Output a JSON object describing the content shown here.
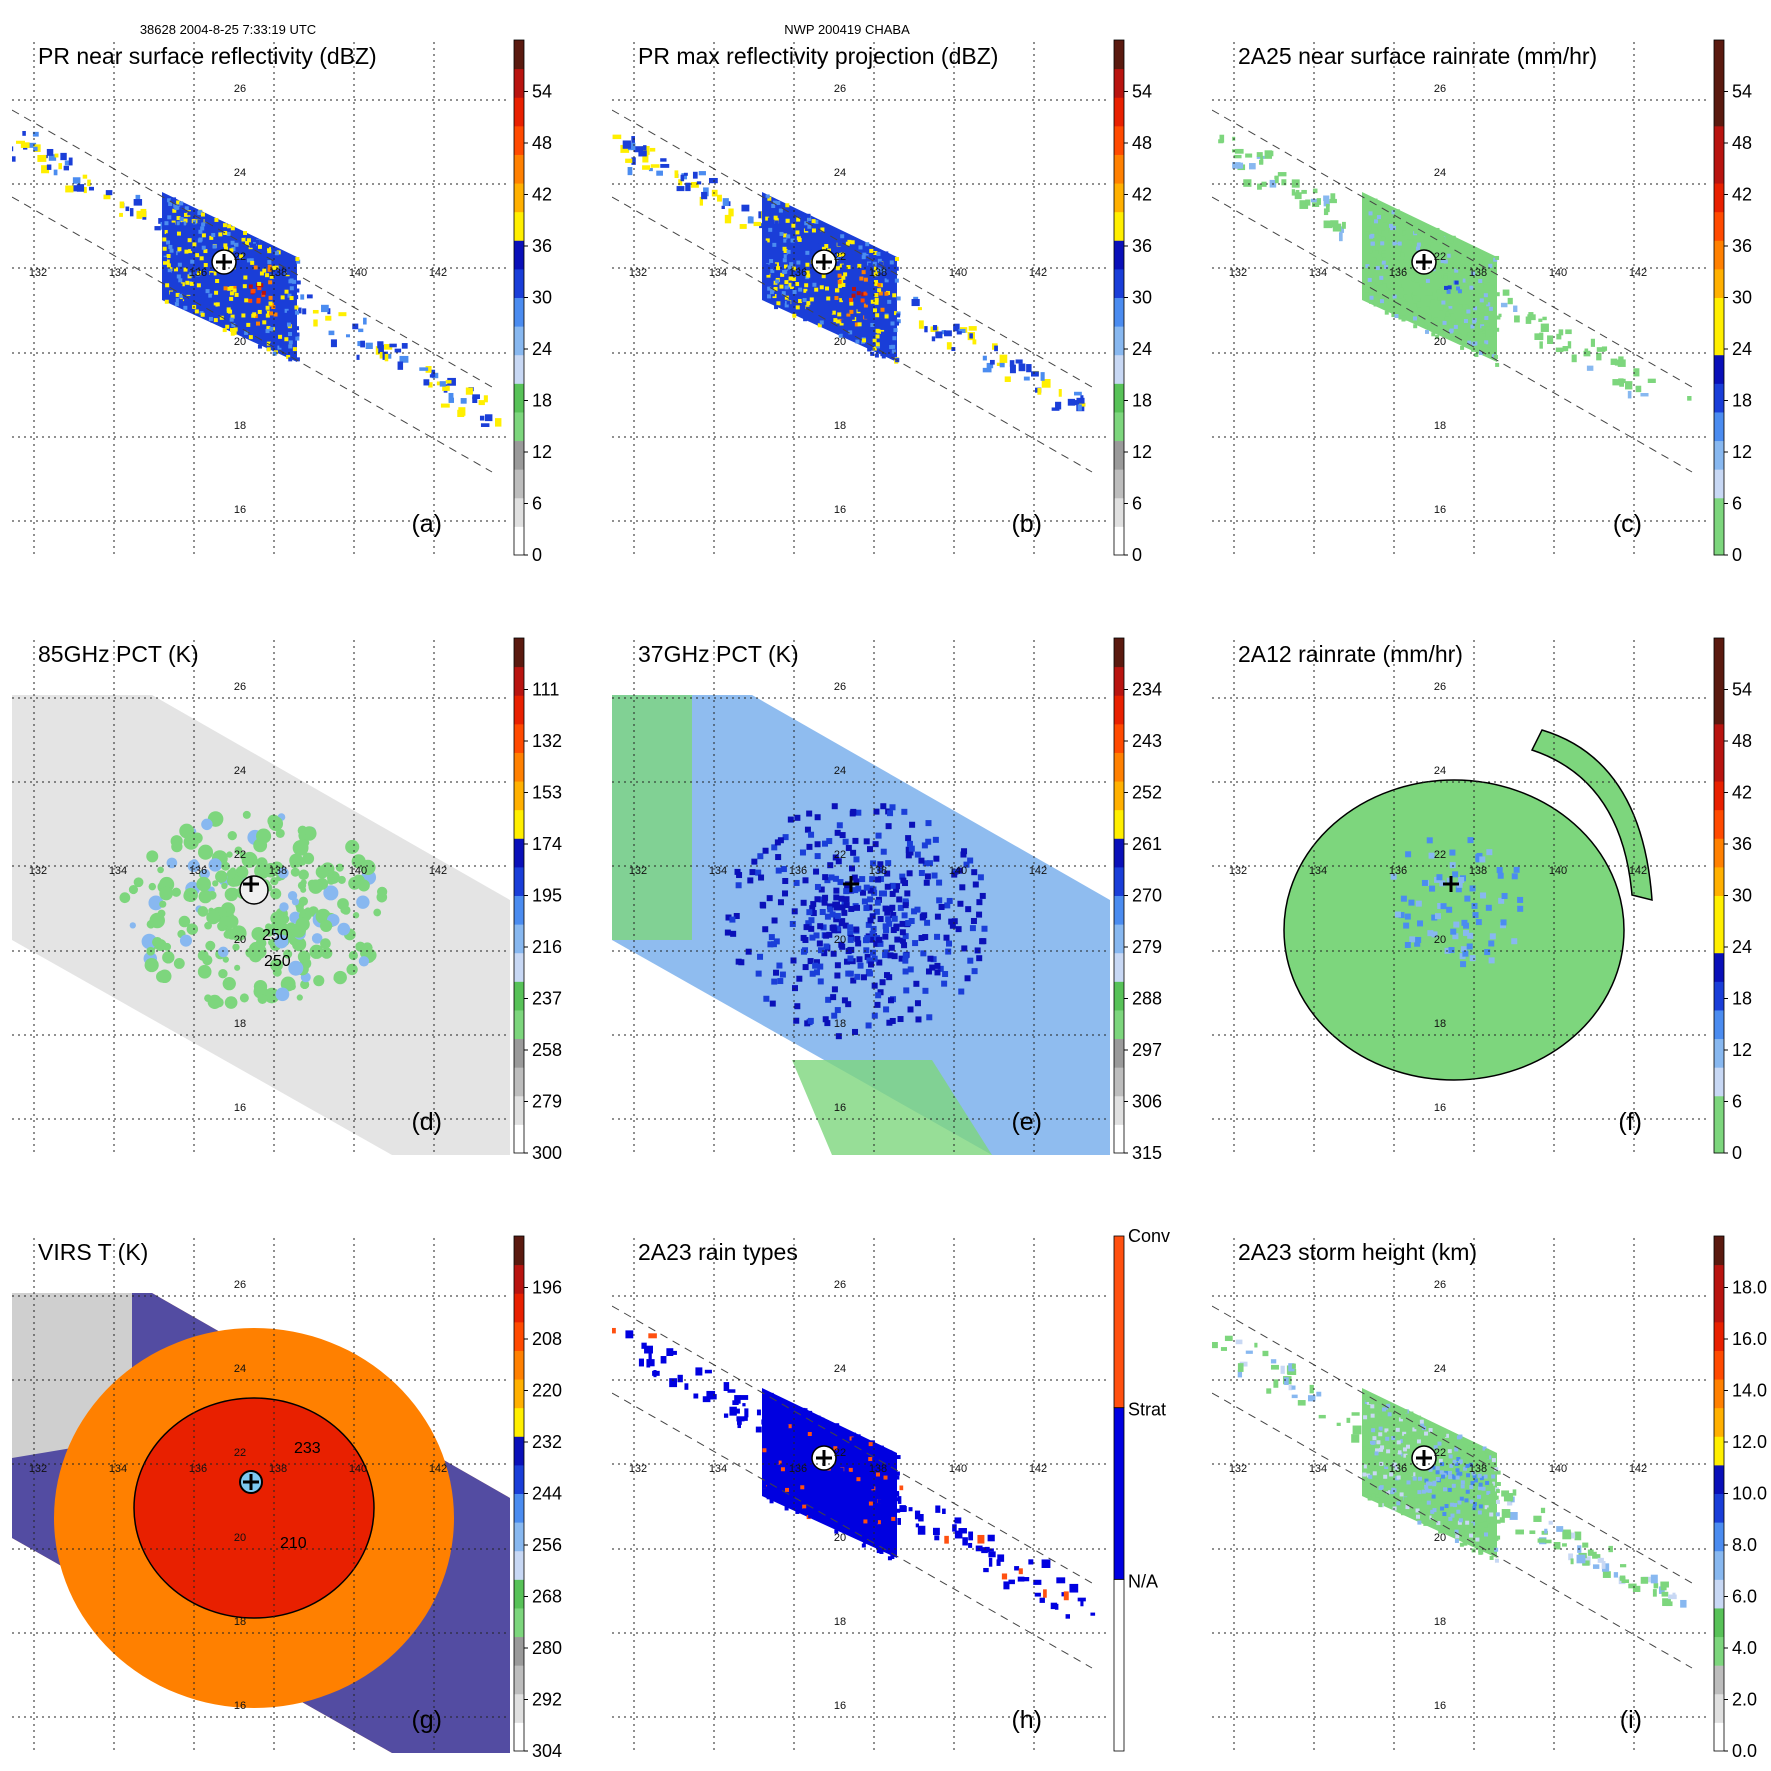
{
  "header": {
    "left": "38628 2004-8-25 7:33:19 UTC",
    "center": "NWP 200419 CHABA"
  },
  "colors": {
    "scale": [
      "#ffffff",
      "#e0e0e0",
      "#bdbdbd",
      "#9a9a9a",
      "#7dd67d",
      "#58c258",
      "#c8d8f4",
      "#88b8f0",
      "#4b8cf0",
      "#1a3ed8",
      "#0a10b8",
      "#ffef00",
      "#ffb000",
      "#ff8000",
      "#ff4a00",
      "#e82000",
      "#b81410",
      "#5a1a10"
    ],
    "rain_types": [
      "#ffffff",
      "#0000e0",
      "#ff5010"
    ]
  },
  "panels": [
    {
      "title": "PR near surface reflectivity (dBZ)",
      "letter": "(a)",
      "kind": "swath",
      "scale_kind": "dbz",
      "ticks": [
        "0",
        "6",
        "12",
        "18",
        "24",
        "30",
        "36",
        "42",
        "48",
        "54"
      ],
      "lat_labels": [
        "26",
        "24",
        "22",
        "20",
        "18",
        "16"
      ],
      "lon_labels": [
        "132",
        "134",
        "136",
        "138",
        "140",
        "142"
      ]
    },
    {
      "title": "PR max reflectivity projection (dBZ)",
      "letter": "(b)",
      "kind": "swath",
      "scale_kind": "dbz",
      "ticks": [
        "0",
        "6",
        "12",
        "18",
        "24",
        "30",
        "36",
        "42",
        "48",
        "54"
      ],
      "lat_labels": [
        "26",
        "24",
        "22",
        "20",
        "18",
        "16"
      ],
      "lon_labels": [
        "132",
        "134",
        "136",
        "138",
        "140",
        "142"
      ]
    },
    {
      "title": "2A25 near surface rainrate (mm/hr)",
      "letter": "(c)",
      "kind": "swath",
      "scale_kind": "rain",
      "ticks": [
        "0",
        "6",
        "12",
        "18",
        "24",
        "30",
        "36",
        "42",
        "48",
        "54"
      ],
      "lat_labels": [
        "26",
        "24",
        "22",
        "20",
        "18",
        "16"
      ],
      "lon_labels": [
        "132",
        "134",
        "136",
        "138",
        "140",
        "142"
      ]
    },
    {
      "title": "85GHz PCT (K)",
      "letter": "(d)",
      "kind": "wide",
      "scale_kind": "tb",
      "ticks": [
        "300",
        "279",
        "258",
        "237",
        "216",
        "195",
        "174",
        "153",
        "132",
        "111"
      ],
      "lat_labels": [
        "26",
        "24",
        "22",
        "20",
        "18",
        "16"
      ],
      "lon_labels": [
        "132",
        "134",
        "136",
        "138",
        "140",
        "142"
      ],
      "contours": [
        "250",
        "250"
      ]
    },
    {
      "title": "37GHz PCT (K)",
      "letter": "(e)",
      "kind": "wide",
      "scale_kind": "tb",
      "ticks": [
        "315",
        "306",
        "297",
        "288",
        "279",
        "270",
        "261",
        "252",
        "243",
        "234"
      ],
      "lat_labels": [
        "26",
        "24",
        "22",
        "20",
        "18",
        "16"
      ],
      "lon_labels": [
        "132",
        "134",
        "136",
        "138",
        "140",
        "142"
      ]
    },
    {
      "title": "2A12 rainrate (mm/hr)",
      "letter": "(f)",
      "kind": "wide",
      "scale_kind": "rain",
      "ticks": [
        "0",
        "6",
        "12",
        "18",
        "24",
        "30",
        "36",
        "42",
        "48",
        "54"
      ],
      "lat_labels": [
        "26",
        "24",
        "22",
        "20",
        "18",
        "16"
      ],
      "lon_labels": [
        "132",
        "134",
        "136",
        "138",
        "140",
        "142"
      ]
    },
    {
      "title": "VIRS T    (K)",
      "letter": "(g)",
      "kind": "wide",
      "scale_kind": "ir",
      "ticks": [
        "304",
        "292",
        "280",
        "268",
        "256",
        "244",
        "232",
        "220",
        "208",
        "196"
      ],
      "lat_labels": [
        "26",
        "24",
        "22",
        "20",
        "18",
        "16"
      ],
      "lon_labels": [
        "132",
        "134",
        "136",
        "138",
        "140",
        "142"
      ],
      "contours": [
        "233",
        "210"
      ]
    },
    {
      "title": "2A23 rain types",
      "letter": "(h)",
      "kind": "swath",
      "scale_kind": "types",
      "ticks": [
        "N/A",
        "Strat",
        "Conv"
      ],
      "lat_labels": [
        "26",
        "24",
        "22",
        "20",
        "18",
        "16"
      ],
      "lon_labels": [
        "132",
        "134",
        "136",
        "138",
        "140",
        "142"
      ]
    },
    {
      "title": "2A23 storm height (km)",
      "letter": "(i)",
      "kind": "swath",
      "scale_kind": "height",
      "ticks": [
        "0.0",
        "2.0",
        "4.0",
        "6.0",
        "8.0",
        "10.0",
        "12.0",
        "14.0",
        "16.0",
        "18.0"
      ],
      "lat_labels": [
        "26",
        "24",
        "22",
        "20",
        "18",
        "16"
      ],
      "lon_labels": [
        "132",
        "134",
        "136",
        "138",
        "140",
        "142"
      ]
    }
  ]
}
